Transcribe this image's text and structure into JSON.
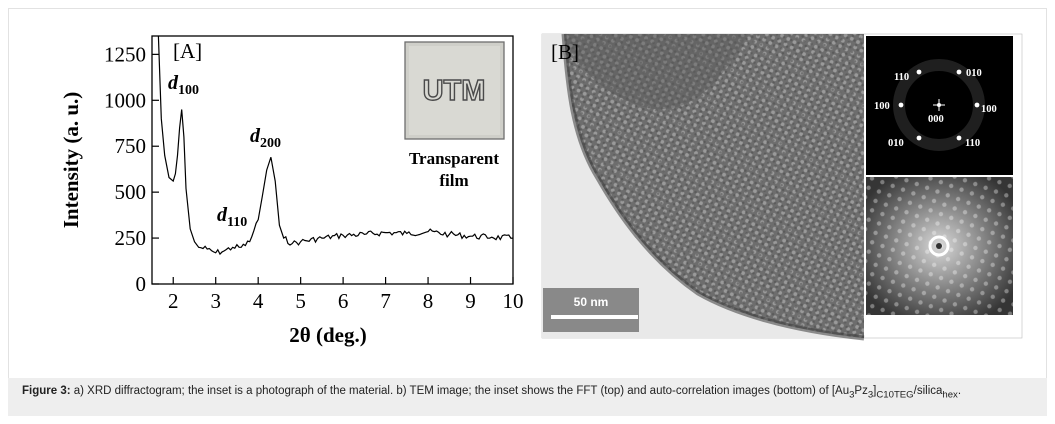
{
  "panelA": {
    "label": "[A]",
    "inset_logo": "UTM",
    "inset_caption_line1": "Transparent",
    "inset_caption_line2": "film",
    "peaks": {
      "d100": {
        "base": "d",
        "sub": "100"
      },
      "d110": {
        "base": "d",
        "sub": "110"
      },
      "d200": {
        "base": "d",
        "sub": "200"
      }
    },
    "xlabel": "2θ (deg.)",
    "ylabel": "Intensity (a. u.)"
  },
  "panelB": {
    "label": "[B]",
    "scale_bar": "50 nm",
    "fft_labels": {
      "top_left": "110",
      "top_right": "010",
      "mid_left": "100",
      "center": "000",
      "mid_right": "100",
      "bottom_left": "010",
      "bottom_right": "110"
    }
  },
  "caption": {
    "fig_label": "Figure 3:",
    "text_a": " a) XRD diffractogram; the inset is a photograph of the material. b) TEM image; the inset shows the FFT (top) and auto-correlation images (bottom) of [Au",
    "sub1": "3",
    "text_b": "Pz",
    "sub2": "3",
    "text_c": "]",
    "sub3": "C10TEG",
    "text_d": "/silica",
    "sub4": "hex",
    "text_e": "."
  },
  "chart_data": {
    "type": "line",
    "title": "",
    "xlabel": "2θ (deg.)",
    "ylabel": "Intensity (a. u.)",
    "xlim": [
      1.5,
      10
    ],
    "ylim": [
      0,
      1350
    ],
    "x_ticks": [
      2,
      3,
      4,
      5,
      6,
      7,
      8,
      9,
      10
    ],
    "y_ticks": [
      0,
      250,
      500,
      750,
      1000,
      1250
    ],
    "grid": false,
    "series": [
      {
        "x": [
          1.65,
          1.72,
          1.8,
          1.9,
          2.0,
          2.05,
          2.1,
          2.15,
          2.2,
          2.25,
          2.3,
          2.4,
          2.5,
          2.6,
          2.8,
          3.0,
          3.2,
          3.4,
          3.6,
          3.8,
          4.0,
          4.1,
          4.2,
          4.3,
          4.4,
          4.5,
          4.6,
          4.8,
          5.0,
          5.5,
          6.0,
          6.5,
          7.0,
          7.5,
          8.0,
          8.5,
          9.0,
          9.5,
          10.0
        ],
        "y": [
          1350,
          900,
          700,
          580,
          560,
          600,
          700,
          850,
          950,
          800,
          520,
          300,
          230,
          200,
          190,
          170,
          180,
          200,
          200,
          230,
          350,
          480,
          620,
          690,
          560,
          320,
          250,
          220,
          230,
          250,
          265,
          270,
          280,
          275,
          285,
          270,
          260,
          255,
          250
        ]
      }
    ]
  }
}
